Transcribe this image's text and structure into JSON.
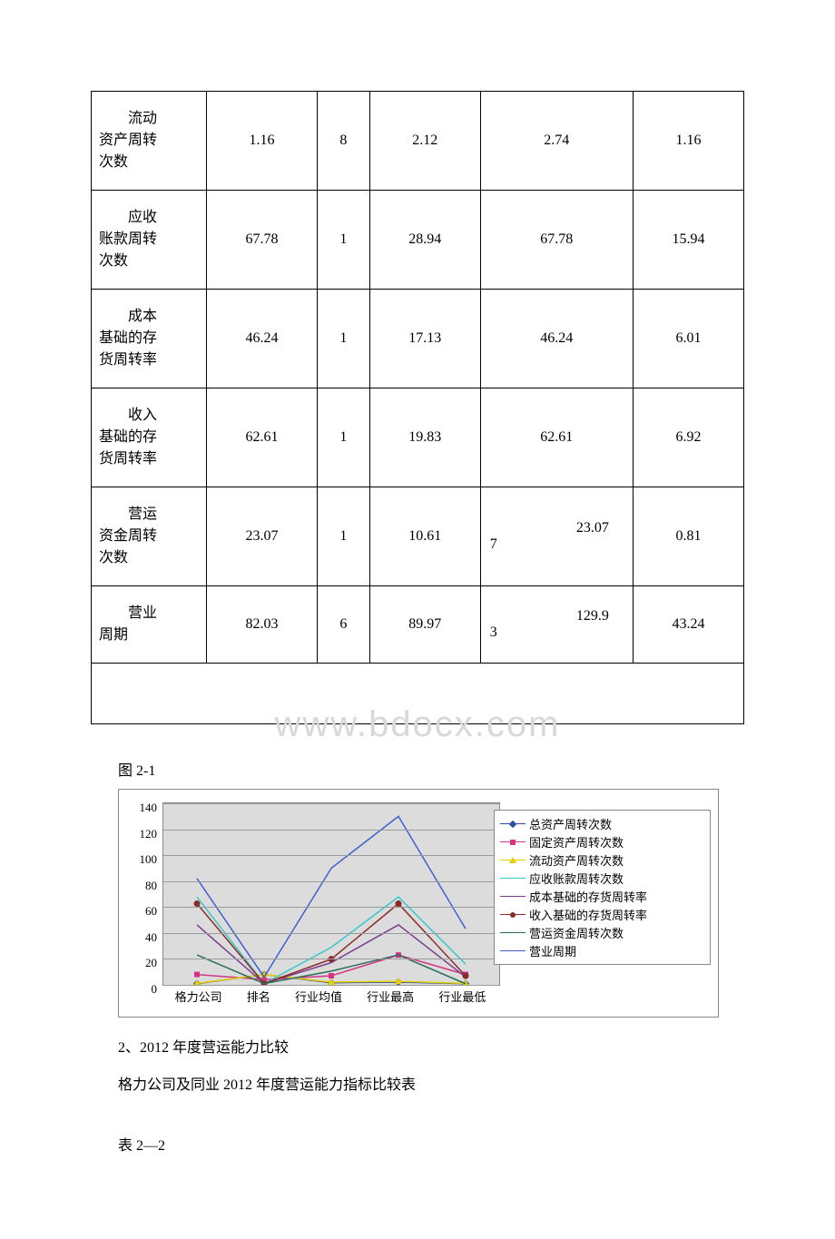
{
  "table": {
    "rows": [
      {
        "label": "流动\n资产周转\n次数",
        "v1": "1.16",
        "v2": "8",
        "v3": "2.12",
        "v4": "2.74",
        "v5": "1.16"
      },
      {
        "label": "应收\n账款周转\n次数",
        "v1": "67.78",
        "v2": "1",
        "v3": "28.94",
        "v4": "67.78",
        "v5": "15.94"
      },
      {
        "label": "成本\n基础的存\n货周转率",
        "v1": "46.24",
        "v2": "1",
        "v3": "17.13",
        "v4": "46.24",
        "v5": "6.01"
      },
      {
        "label": "收入\n基础的存\n货周转率",
        "v1": "62.61",
        "v2": "1",
        "v3": "19.83",
        "v4": "62.61",
        "v5": "6.92"
      },
      {
        "label": "营运\n资金周转\n次数",
        "v1": "23.07",
        "v2": "1",
        "v3": "10.61",
        "v4": "23.07\n7",
        "v5": "0.81",
        "v4_prefix": "7",
        "v4_main": "23.07"
      },
      {
        "label": "营业\n周期",
        "v1": "82.03",
        "v2": "6",
        "v3": "89.97",
        "v4": "129.9\n3",
        "v5": "43.24",
        "v4_prefix": "3",
        "v4_main": "129.9"
      }
    ]
  },
  "watermark": "www.bdocx.com",
  "figure_caption": "图 2-1",
  "chart": {
    "type": "line",
    "categories": [
      "格力公司",
      "排名",
      "行业均值",
      "行业最高",
      "行业最低"
    ],
    "ylim": [
      0,
      140
    ],
    "ytick_step": 20,
    "yticks": [
      0,
      20,
      40,
      60,
      80,
      100,
      120,
      140
    ],
    "plot_background": "#dcdcdc",
    "grid_color": "#9a9a9a",
    "legend_border": "#888888",
    "axis_fontsize": 13,
    "legend_fontsize": 13,
    "series": [
      {
        "name": "总资产周转次数",
        "color": "#2e4e9e",
        "marker": "diamond",
        "values": [
          0.9,
          8,
          1.6,
          2.1,
          0.9
        ]
      },
      {
        "name": "固定资产周转次数",
        "color": "#d63384",
        "marker": "square",
        "values": [
          8,
          4,
          7,
          23,
          8
        ]
      },
      {
        "name": "流动资产周转次数",
        "color": "#e6d200",
        "marker": "triangle",
        "values": [
          1.16,
          8,
          2.12,
          2.74,
          1.16
        ]
      },
      {
        "name": "应收账款周转次数",
        "color": "#3ac7cc",
        "marker": "none",
        "values": [
          67.78,
          1,
          28.94,
          67.78,
          15.94
        ]
      },
      {
        "name": "成本基础的存货周转率",
        "color": "#7a3e8f",
        "marker": "none",
        "values": [
          46.24,
          1,
          17.13,
          46.24,
          6.01
        ]
      },
      {
        "name": "收入基础的存货周转率",
        "color": "#8b2a2a",
        "marker": "circle",
        "values": [
          62.61,
          1,
          19.83,
          62.61,
          6.92
        ]
      },
      {
        "name": "营运资金周转次数",
        "color": "#2a6e5e",
        "marker": "none",
        "values": [
          23.07,
          1,
          10.61,
          23.07,
          0.81
        ]
      },
      {
        "name": "营业周期",
        "color": "#4060d0",
        "marker": "none",
        "values": [
          82.03,
          6,
          89.97,
          129.93,
          43.24
        ]
      }
    ]
  },
  "section2_title": "2、2012 年度营运能力比较",
  "section2_sub": "格力公司及同业 2012 年度营运能力指标比较表",
  "table22_caption": "表 2—2"
}
